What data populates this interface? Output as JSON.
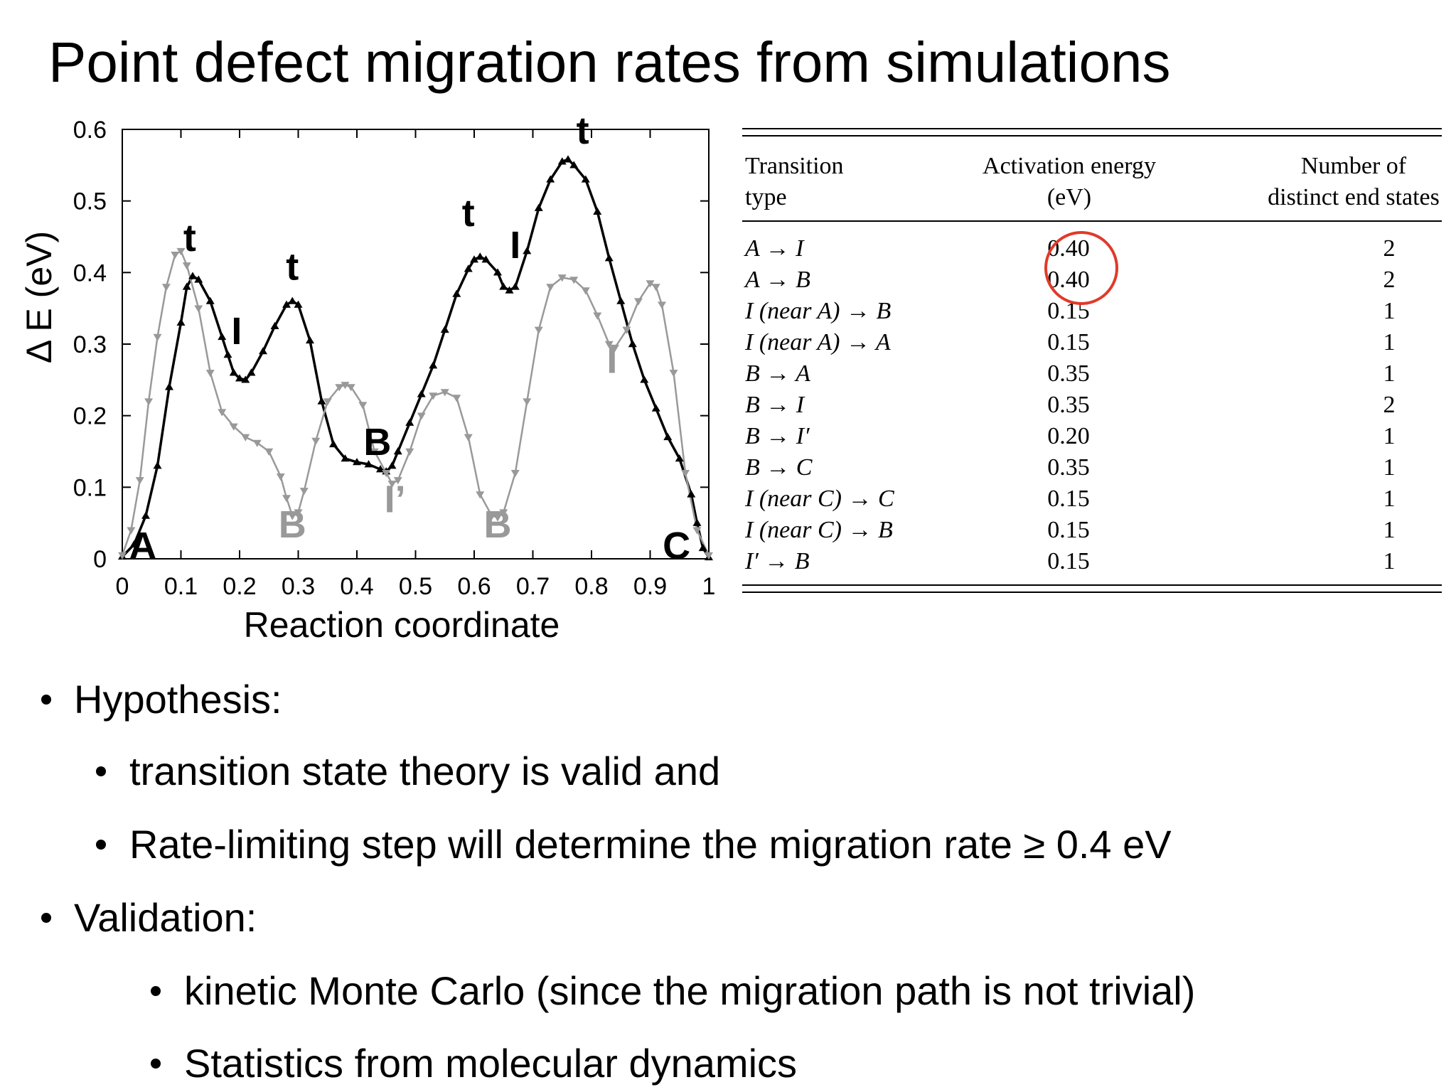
{
  "slide": {
    "title": "Point defect migration rates from simulations"
  },
  "chart_data": {
    "type": "line",
    "xlabel": "Reaction coordinate",
    "ylabel": "Δ E (eV)",
    "xlim": [
      0,
      1
    ],
    "ylim": [
      0,
      0.6
    ],
    "xticks": [
      "0",
      "0.1",
      "0.2",
      "0.3",
      "0.4",
      "0.5",
      "0.6",
      "0.7",
      "0.8",
      "0.9",
      "1"
    ],
    "yticks": [
      "0",
      "0.1",
      "0.2",
      "0.3",
      "0.4",
      "0.5",
      "0.6"
    ],
    "grid": false,
    "series": [
      {
        "color": "#000000",
        "marker": "triangle-up",
        "points": [
          [
            0,
            0.003
          ],
          [
            0.02,
            0.02
          ],
          [
            0.04,
            0.06
          ],
          [
            0.06,
            0.13
          ],
          [
            0.08,
            0.24
          ],
          [
            0.1,
            0.33
          ],
          [
            0.11,
            0.38
          ],
          [
            0.12,
            0.395
          ],
          [
            0.13,
            0.39
          ],
          [
            0.15,
            0.36
          ],
          [
            0.17,
            0.31
          ],
          [
            0.18,
            0.285
          ],
          [
            0.19,
            0.26
          ],
          [
            0.2,
            0.252
          ],
          [
            0.21,
            0.25
          ],
          [
            0.22,
            0.26
          ],
          [
            0.24,
            0.29
          ],
          [
            0.26,
            0.325
          ],
          [
            0.28,
            0.355
          ],
          [
            0.29,
            0.36
          ],
          [
            0.3,
            0.355
          ],
          [
            0.32,
            0.305
          ],
          [
            0.34,
            0.22
          ],
          [
            0.36,
            0.16
          ],
          [
            0.38,
            0.14
          ],
          [
            0.4,
            0.135
          ],
          [
            0.42,
            0.132
          ],
          [
            0.44,
            0.125
          ],
          [
            0.45,
            0.122
          ],
          [
            0.46,
            0.13
          ],
          [
            0.47,
            0.15
          ],
          [
            0.49,
            0.19
          ],
          [
            0.51,
            0.23
          ],
          [
            0.53,
            0.27
          ],
          [
            0.55,
            0.32
          ],
          [
            0.57,
            0.37
          ],
          [
            0.59,
            0.405
          ],
          [
            0.6,
            0.418
          ],
          [
            0.61,
            0.422
          ],
          [
            0.62,
            0.418
          ],
          [
            0.64,
            0.4
          ],
          [
            0.65,
            0.38
          ],
          [
            0.66,
            0.375
          ],
          [
            0.67,
            0.38
          ],
          [
            0.69,
            0.43
          ],
          [
            0.71,
            0.49
          ],
          [
            0.73,
            0.53
          ],
          [
            0.75,
            0.555
          ],
          [
            0.76,
            0.558
          ],
          [
            0.77,
            0.55
          ],
          [
            0.79,
            0.53
          ],
          [
            0.81,
            0.485
          ],
          [
            0.83,
            0.42
          ],
          [
            0.85,
            0.36
          ],
          [
            0.87,
            0.3
          ],
          [
            0.89,
            0.25
          ],
          [
            0.91,
            0.21
          ],
          [
            0.93,
            0.17
          ],
          [
            0.95,
            0.14
          ],
          [
            0.97,
            0.09
          ],
          [
            0.98,
            0.05
          ],
          [
            0.99,
            0.015
          ],
          [
            1,
            0.002
          ]
        ]
      },
      {
        "color": "#999999",
        "marker": "triangle-down",
        "points": [
          [
            0,
            0.005
          ],
          [
            0.015,
            0.04
          ],
          [
            0.03,
            0.11
          ],
          [
            0.045,
            0.22
          ],
          [
            0.06,
            0.31
          ],
          [
            0.075,
            0.38
          ],
          [
            0.09,
            0.425
          ],
          [
            0.1,
            0.43
          ],
          [
            0.11,
            0.41
          ],
          [
            0.13,
            0.35
          ],
          [
            0.15,
            0.26
          ],
          [
            0.17,
            0.205
          ],
          [
            0.19,
            0.185
          ],
          [
            0.21,
            0.17
          ],
          [
            0.23,
            0.162
          ],
          [
            0.25,
            0.15
          ],
          [
            0.27,
            0.115
          ],
          [
            0.28,
            0.085
          ],
          [
            0.29,
            0.06
          ],
          [
            0.3,
            0.065
          ],
          [
            0.31,
            0.095
          ],
          [
            0.33,
            0.165
          ],
          [
            0.35,
            0.22
          ],
          [
            0.37,
            0.24
          ],
          [
            0.38,
            0.243
          ],
          [
            0.39,
            0.24
          ],
          [
            0.41,
            0.215
          ],
          [
            0.43,
            0.15
          ],
          [
            0.45,
            0.12
          ],
          [
            0.46,
            0.105
          ],
          [
            0.47,
            0.11
          ],
          [
            0.49,
            0.15
          ],
          [
            0.51,
            0.2
          ],
          [
            0.53,
            0.228
          ],
          [
            0.55,
            0.233
          ],
          [
            0.57,
            0.225
          ],
          [
            0.59,
            0.17
          ],
          [
            0.61,
            0.09
          ],
          [
            0.63,
            0.06
          ],
          [
            0.64,
            0.058
          ],
          [
            0.65,
            0.065
          ],
          [
            0.67,
            0.12
          ],
          [
            0.69,
            0.22
          ],
          [
            0.71,
            0.32
          ],
          [
            0.73,
            0.38
          ],
          [
            0.75,
            0.393
          ],
          [
            0.77,
            0.39
          ],
          [
            0.79,
            0.375
          ],
          [
            0.81,
            0.34
          ],
          [
            0.83,
            0.3
          ],
          [
            0.84,
            0.295
          ],
          [
            0.86,
            0.32
          ],
          [
            0.88,
            0.36
          ],
          [
            0.9,
            0.385
          ],
          [
            0.91,
            0.38
          ],
          [
            0.92,
            0.355
          ],
          [
            0.94,
            0.26
          ],
          [
            0.96,
            0.12
          ],
          [
            0.98,
            0.04
          ],
          [
            1,
            0.005
          ]
        ]
      }
    ],
    "annotations": [
      {
        "text": "A",
        "x": 0.035,
        "y": 0.0,
        "color": "#000000"
      },
      {
        "text": "t",
        "x": 0.115,
        "y": 0.43,
        "color": "#000000"
      },
      {
        "text": "I",
        "x": 0.195,
        "y": 0.3,
        "color": "#000000"
      },
      {
        "text": "t",
        "x": 0.29,
        "y": 0.39,
        "color": "#000000"
      },
      {
        "text": "B",
        "x": 0.435,
        "y": 0.145,
        "color": "#000000"
      },
      {
        "text": "t",
        "x": 0.59,
        "y": 0.465,
        "color": "#000000"
      },
      {
        "text": "I",
        "x": 0.67,
        "y": 0.42,
        "color": "#000000"
      },
      {
        "text": "t",
        "x": 0.785,
        "y": 0.58,
        "color": "#000000"
      },
      {
        "text": "C",
        "x": 0.945,
        "y": 0.0,
        "color": "#000000"
      },
      {
        "text": "B",
        "x": 0.29,
        "y": 0.03,
        "color": "#999999"
      },
      {
        "text": "I’",
        "x": 0.465,
        "y": 0.065,
        "color": "#999999"
      },
      {
        "text": "B",
        "x": 0.64,
        "y": 0.03,
        "color": "#999999"
      },
      {
        "text": "I",
        "x": 0.835,
        "y": 0.26,
        "color": "#999999"
      }
    ]
  },
  "table": {
    "headers": {
      "col1": [
        "Transition",
        "type"
      ],
      "col2": [
        "Activation energy",
        "(eV)"
      ],
      "col3": [
        "Number of",
        "distinct end states"
      ]
    },
    "rows": [
      {
        "type": "A → I",
        "energy": "0.40",
        "states": "2"
      },
      {
        "type": "A → B",
        "energy": "0.40",
        "states": "2"
      },
      {
        "type": "I (near A) → B",
        "energy": "0.15",
        "states": "1"
      },
      {
        "type": "I (near A) → A",
        "energy": "0.15",
        "states": "1"
      },
      {
        "type": "B → A",
        "energy": "0.35",
        "states": "1"
      },
      {
        "type": "B → I",
        "energy": "0.35",
        "states": "2"
      },
      {
        "type": "B → I′",
        "energy": "0.20",
        "states": "1"
      },
      {
        "type": "B → C",
        "energy": "0.35",
        "states": "1"
      },
      {
        "type": "I (near C) → C",
        "energy": "0.15",
        "states": "1"
      },
      {
        "type": "I (near C) → B",
        "energy": "0.15",
        "states": "1"
      },
      {
        "type": "I′ → B",
        "energy": "0.15",
        "states": "1"
      }
    ],
    "highlight_color": "#e03a2a"
  },
  "bullets": {
    "hypothesis": "Hypothesis:",
    "hypothesis_items": [
      "transition state theory is valid and",
      "Rate-limiting step will determine the migration rate ≥ 0.4 eV"
    ],
    "validation": "Validation:",
    "validation_items": [
      "kinetic Monte Carlo (since the migration path is not trivial)",
      "Statistics from molecular dynamics"
    ]
  }
}
